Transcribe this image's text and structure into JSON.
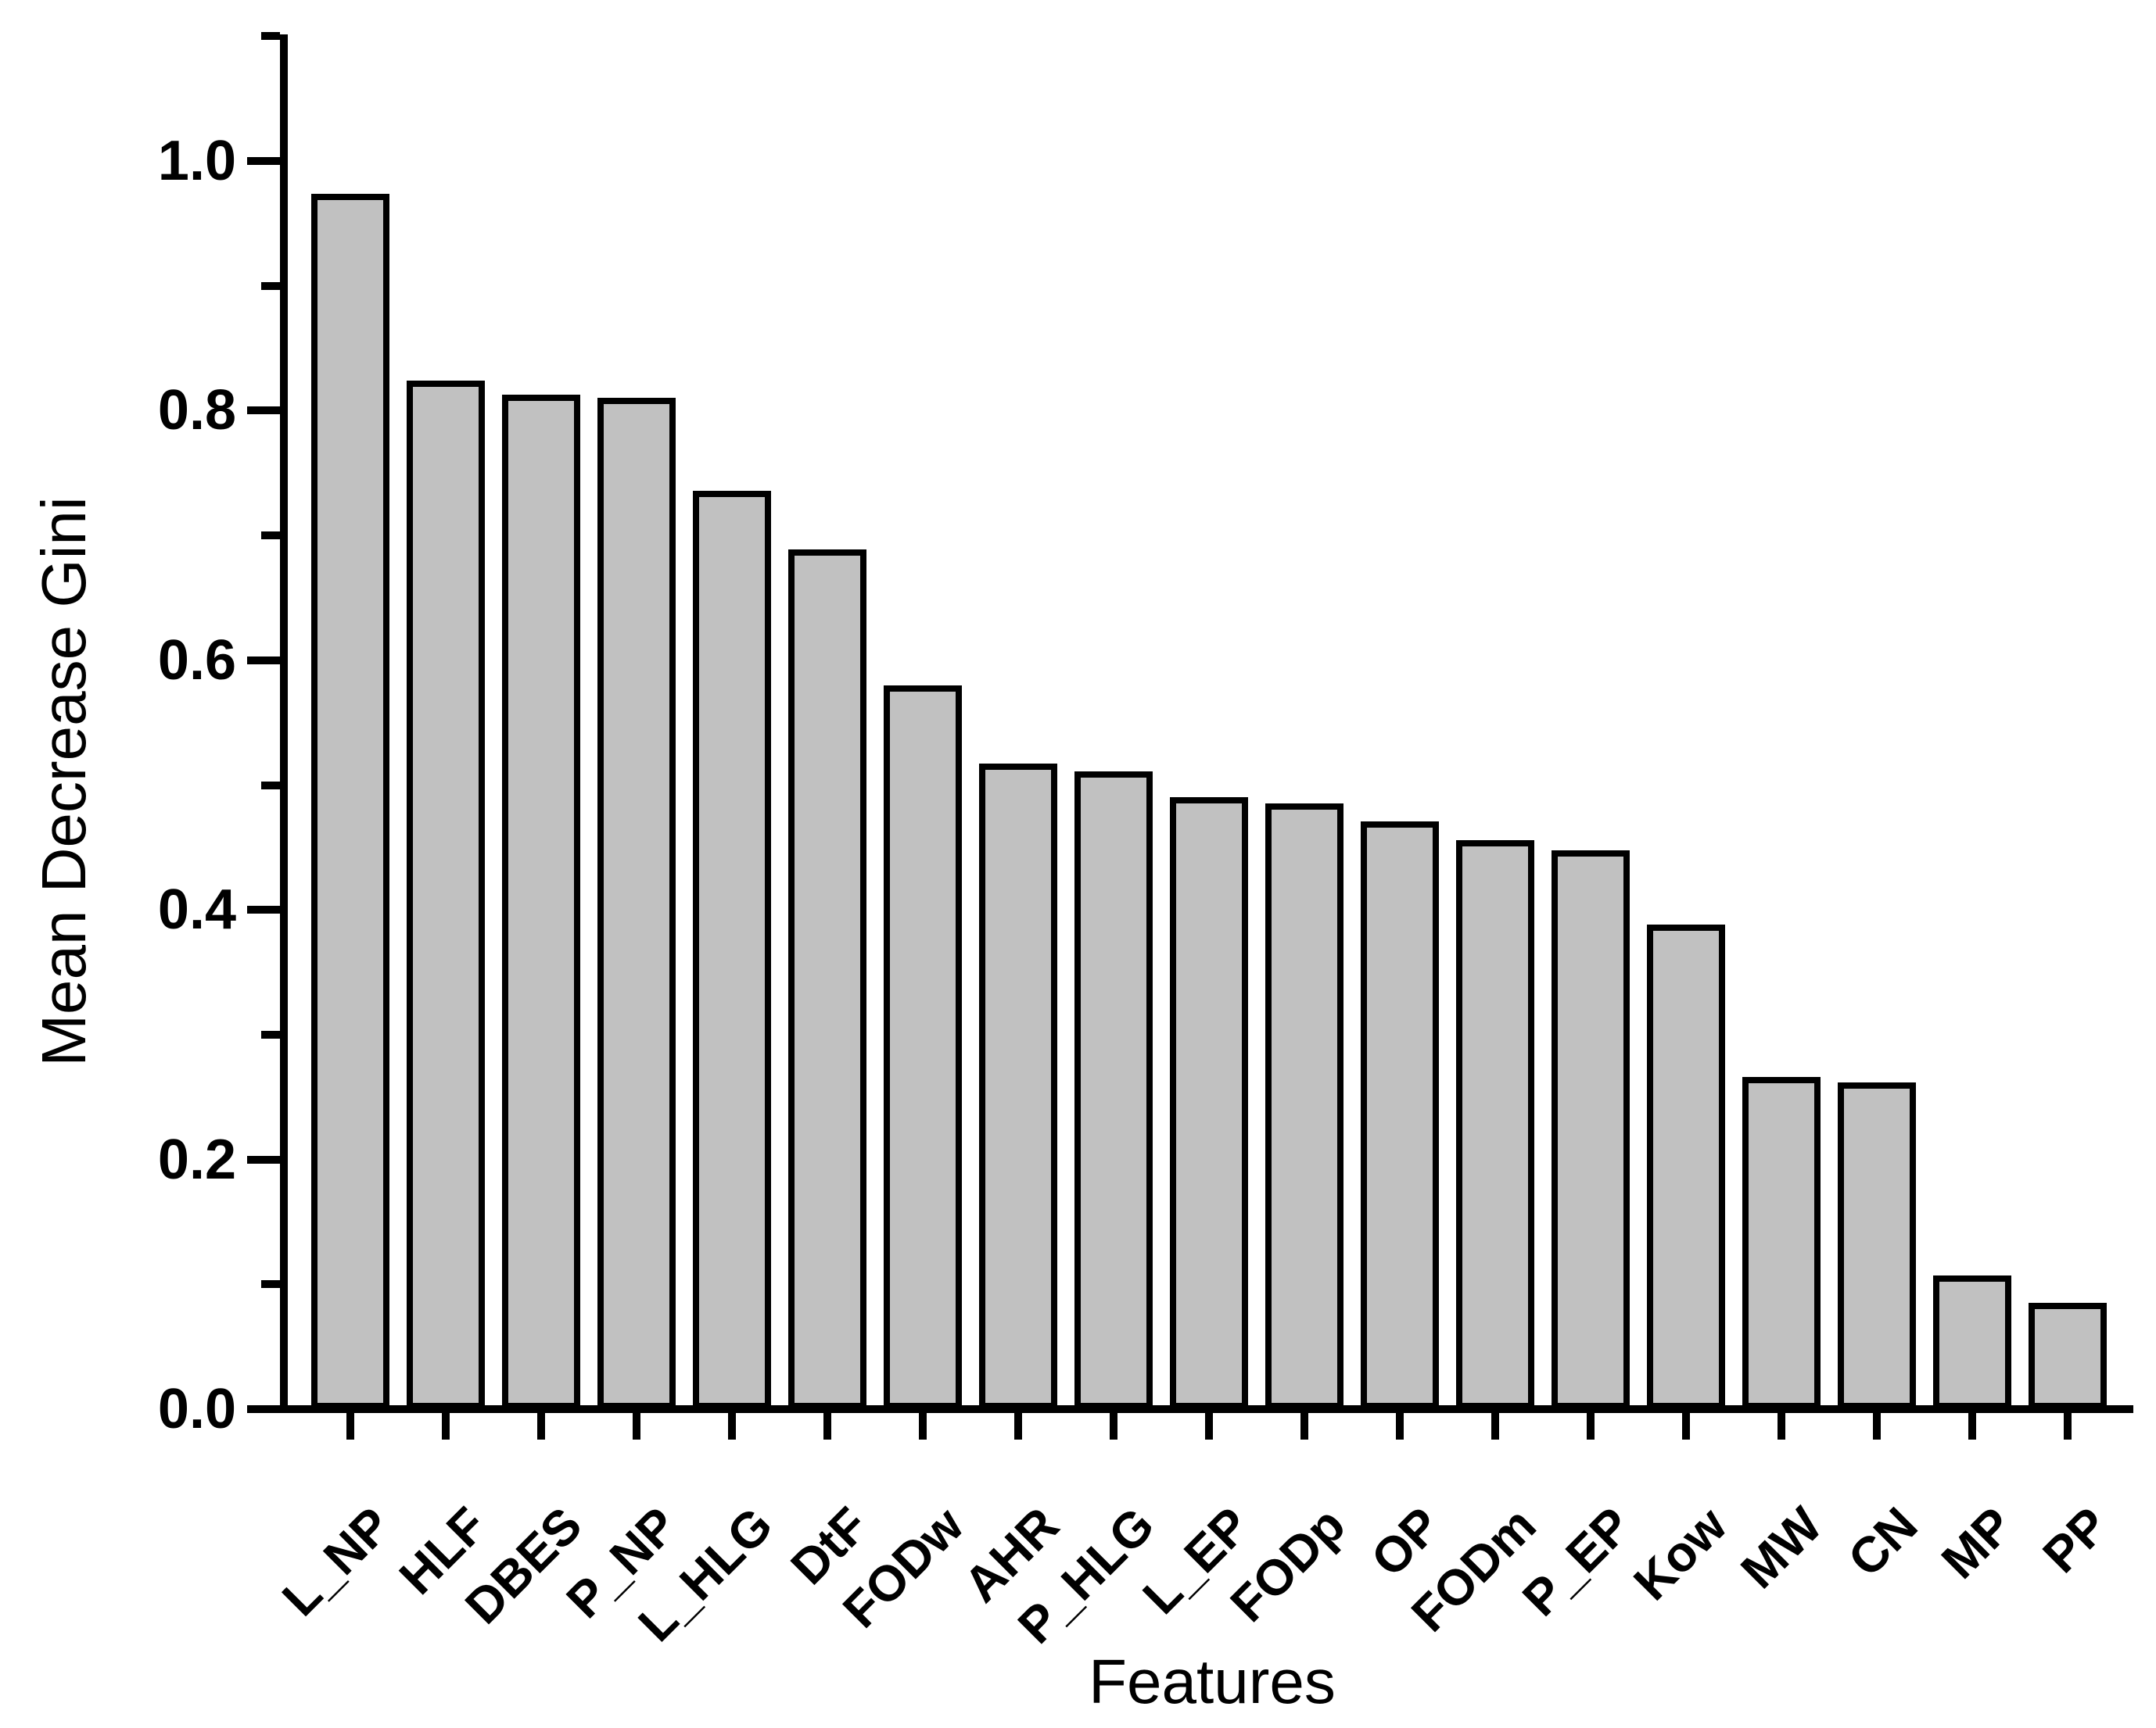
{
  "chart_data": {
    "type": "bar",
    "title": "",
    "xlabel": "Features",
    "ylabel": "Mean Decrease Gini",
    "categories": [
      "L_NP",
      "HLF",
      "DBES",
      "P_NP",
      "L_HLG",
      "DtF",
      "FODw",
      "AHR",
      "P_HLG",
      "L_EP",
      "FODp",
      "OP",
      "FODm",
      "P_EP",
      "Kow",
      "MW",
      "CN",
      "MP",
      "PP"
    ],
    "values": [
      0.974,
      0.824,
      0.813,
      0.81,
      0.736,
      0.689,
      0.58,
      0.517,
      0.511,
      0.49,
      0.485,
      0.471,
      0.456,
      0.448,
      0.388,
      0.266,
      0.262,
      0.107,
      0.085
    ],
    "ylim": [
      0.0,
      1.1
    ],
    "yticks_major": [
      0.0,
      0.2,
      0.4,
      0.6,
      0.8,
      1.0
    ],
    "ytick_labels": [
      "0.0",
      "0.2",
      "0.4",
      "0.6",
      "0.8",
      "1.0"
    ],
    "yticks_minor": [
      0.1,
      0.3,
      0.5,
      0.7,
      0.9,
      1.1
    ],
    "grid": false,
    "legend": null,
    "colors": {
      "bar_fill": "#c1c1c1",
      "bar_border": "#000000",
      "axis": "#000000",
      "background": "#ffffff",
      "text": "#000000"
    }
  }
}
